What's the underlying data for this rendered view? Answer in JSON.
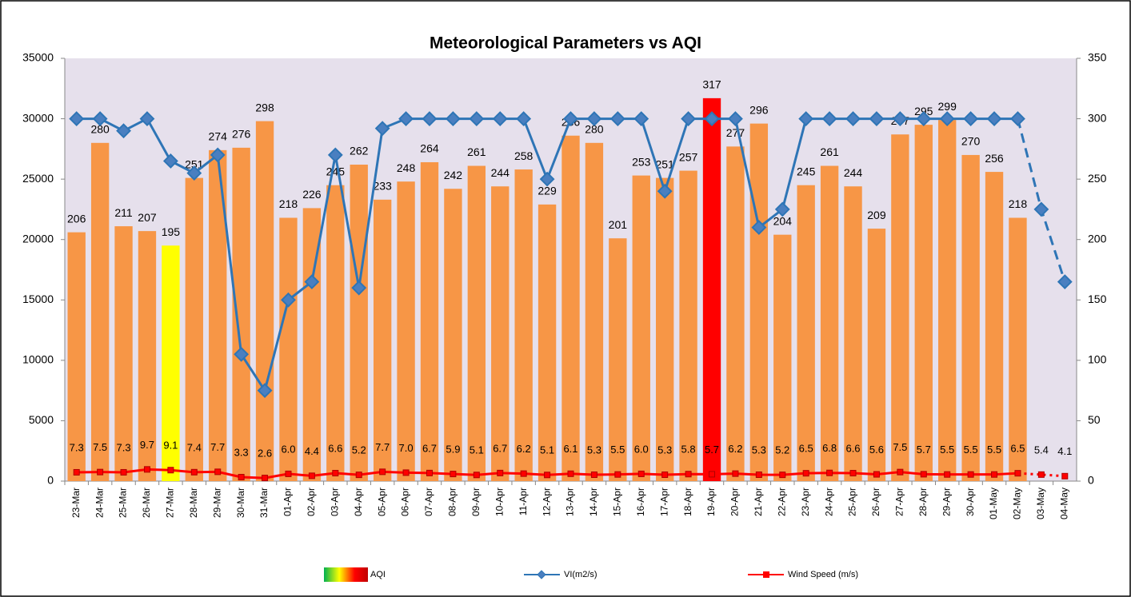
{
  "chart_data": {
    "type": "bar_line",
    "title": "Meteorological Parameters vs AQI",
    "categories": [
      "23-Mar",
      "24-Mar",
      "25-Mar",
      "26-Mar",
      "27-Mar",
      "28-Mar",
      "29-Mar",
      "30-Mar",
      "31-Mar",
      "01-Apr",
      "02-Apr",
      "03-Apr",
      "04-Apr",
      "05-Apr",
      "06-Apr",
      "07-Apr",
      "08-Apr",
      "09-Apr",
      "10-Apr",
      "11-Apr",
      "12-Apr",
      "13-Apr",
      "14-Apr",
      "15-Apr",
      "16-Apr",
      "17-Apr",
      "18-Apr",
      "19-Apr",
      "20-Apr",
      "21-Apr",
      "22-Apr",
      "23-Apr",
      "24-Apr",
      "25-Apr",
      "26-Apr",
      "27-Apr",
      "28-Apr",
      "29-Apr",
      "30-Apr",
      "01-May",
      "02-May",
      "03-May",
      "04-May"
    ],
    "series": [
      {
        "name": "AQI",
        "type": "bar",
        "axis": "y2",
        "color": "#f79646",
        "colors": [
          "#f79646",
          "#f79646",
          "#f79646",
          "#f79646",
          "#ffff00",
          "#f79646",
          "#f79646",
          "#f79646",
          "#f79646",
          "#f79646",
          "#f79646",
          "#f79646",
          "#f79646",
          "#f79646",
          "#f79646",
          "#f79646",
          "#f79646",
          "#f79646",
          "#f79646",
          "#f79646",
          "#f79646",
          "#f79646",
          "#f79646",
          "#f79646",
          "#f79646",
          "#f79646",
          "#f79646",
          "#ff0000",
          "#f79646",
          "#f79646",
          "#f79646",
          "#f79646",
          "#f79646",
          "#f79646",
          "#f79646",
          "#f79646",
          "#f79646",
          "#f79646",
          "#f79646",
          "#f79646",
          "#f79646",
          "#f79646",
          "#f79646"
        ],
        "values": [
          206,
          280,
          211,
          207,
          195,
          251,
          274,
          276,
          298,
          218,
          226,
          245,
          262,
          233,
          248,
          264,
          242,
          261,
          244,
          258,
          229,
          286,
          280,
          201,
          253,
          251,
          257,
          317,
          277,
          296,
          204,
          245,
          261,
          244,
          209,
          287,
          295,
          299,
          270,
          256,
          218,
          null,
          null
        ]
      },
      {
        "name": "VI(m2/s)",
        "type": "line",
        "marker": "diamond",
        "color": "#2e75b6",
        "dashed_from": 40,
        "values": [
          30000,
          30000,
          29000,
          30000,
          26500,
          25500,
          27000,
          10500,
          7500,
          15000,
          16500,
          27000,
          16000,
          29200,
          30000,
          30000,
          30000,
          30000,
          30000,
          30000,
          25000,
          30000,
          30000,
          30000,
          30000,
          24000,
          30000,
          30000,
          30000,
          21000,
          22500,
          30000,
          30000,
          30000,
          30000,
          30000,
          30000,
          30000,
          30000,
          30000,
          30000,
          22500,
          16500
        ]
      },
      {
        "name": "Wind Speed (m/s)",
        "type": "line",
        "axis": "y2",
        "marker": "square",
        "color": "#ff0000",
        "dashed_from": 40,
        "values": [
          7.3,
          7.5,
          7.3,
          9.7,
          9.1,
          7.4,
          7.7,
          3.3,
          2.6,
          6,
          4.4,
          6.6,
          5.2,
          7.7,
          7,
          6.7,
          5.9,
          5.1,
          6.7,
          6.2,
          5.1,
          6.1,
          5.3,
          5.5,
          6,
          5.3,
          5.8,
          5.7,
          6.2,
          5.3,
          5.2,
          6.5,
          6.8,
          6.6,
          5.6,
          7.5,
          5.7,
          5.5,
          5.5,
          5.5,
          6.5,
          5.4,
          4.1
        ],
        "value_labels": [
          "7.3",
          "7.5",
          "7.3",
          "9.7",
          "9.1",
          "7.4",
          "7.7",
          "3.3",
          "2.6",
          "6.0",
          "4.4",
          "6.6",
          "5.2",
          "7.7",
          "7.0",
          "6.7",
          "5.9",
          "5.1",
          "6.7",
          "6.2",
          "5.1",
          "6.1",
          "5.3",
          "5.5",
          "6.0",
          "5.3",
          "5.8",
          "5.7",
          "6.2",
          "5.3",
          "5.2",
          "6.5",
          "6.8",
          "6.6",
          "5.6",
          "7.5",
          "5.7",
          "5.5",
          "5.5",
          "5.5",
          "6.5",
          "5.4",
          "4.1"
        ]
      }
    ],
    "ylim": [
      0,
      35000
    ],
    "yticks": [
      0,
      5000,
      10000,
      15000,
      20000,
      25000,
      30000,
      35000
    ],
    "y2lim": [
      0,
      350
    ],
    "y2ticks": [
      0,
      50,
      100,
      150,
      200,
      250,
      300,
      350
    ],
    "grid": false,
    "legend": "bottom"
  }
}
